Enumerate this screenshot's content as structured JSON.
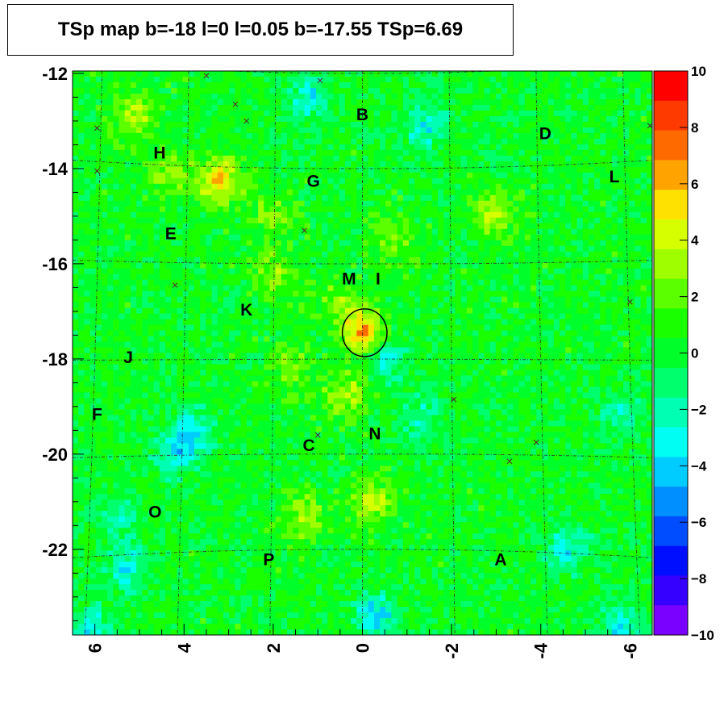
{
  "title": "TSp map b=-18 l=0 l=0.05 b=-17.55 TSp=6.69",
  "chart_data": {
    "type": "heatmap",
    "title": "TSp map b=-18 l=0 l=0.05 b=-17.55 TSp=6.69",
    "xlabel": "",
    "ylabel": "",
    "xlim": [
      6.5,
      -6.5
    ],
    "ylim": [
      -23.8,
      -11.95
    ],
    "zlim": [
      -10,
      10
    ],
    "x_ticks": [
      "6",
      "4",
      "2",
      "0",
      "-2",
      "-4",
      "-6"
    ],
    "y_ticks": [
      "-12",
      "-14",
      "-16",
      "-18",
      "-20",
      "-22"
    ],
    "z_ticks": [
      "10",
      "8",
      "6",
      "4",
      "2",
      "0",
      "−2",
      "−4",
      "−6",
      "−8",
      "−10"
    ],
    "colorbar": [
      "#ff0000",
      "#ff3a00",
      "#ff6a00",
      "#ffa300",
      "#ffe100",
      "#d6ff00",
      "#9fff00",
      "#5cff00",
      "#1aff00",
      "#00ff2a",
      "#00ff6d",
      "#00ffb2",
      "#00fff2",
      "#00ccff",
      "#008fff",
      "#004dff",
      "#000eff",
      "#3500ff",
      "#7a00ff"
    ],
    "background_value": 0.3,
    "hotspots": [
      {
        "x": -0.05,
        "y": -17.45,
        "value": 6.69
      },
      {
        "x": 3.2,
        "y": -14.25,
        "value": 5.5
      },
      {
        "x": 0.35,
        "y": -18.75,
        "value": 3.5
      },
      {
        "x": -0.2,
        "y": -21.0,
        "value": 3.5
      },
      {
        "x": -2.9,
        "y": -14.95,
        "value": 3.5
      },
      {
        "x": 1.95,
        "y": -16.2,
        "value": 3
      },
      {
        "x": 0.5,
        "y": -16.9,
        "value": 3
      },
      {
        "x": 5.1,
        "y": -12.85,
        "value": 3.5
      },
      {
        "x": 4.3,
        "y": -14.1,
        "value": 3
      },
      {
        "x": 1.3,
        "y": -21.3,
        "value": 3
      },
      {
        "x": 1.6,
        "y": -18.2,
        "value": 2.5
      },
      {
        "x": -0.7,
        "y": -15.5,
        "value": 2.5
      },
      {
        "x": 2.0,
        "y": -15.0,
        "value": 2.5
      }
    ],
    "coldspots": [
      {
        "x": 1.2,
        "y": -12.5,
        "value": -3
      },
      {
        "x": -1.4,
        "y": -13.1,
        "value": -3
      },
      {
        "x": -0.5,
        "y": -18.0,
        "value": -3
      },
      {
        "x": 3.8,
        "y": -19.5,
        "value": -3
      },
      {
        "x": 4.2,
        "y": -20.0,
        "value": -3
      },
      {
        "x": 5.3,
        "y": -22.4,
        "value": -3
      },
      {
        "x": -0.3,
        "y": -23.4,
        "value": -4
      },
      {
        "x": -4.6,
        "y": -22.0,
        "value": -3
      },
      {
        "x": -5.8,
        "y": -23.6,
        "value": -3
      },
      {
        "x": 6.1,
        "y": -23.7,
        "value": -3
      },
      {
        "x": -1.3,
        "y": -19.2,
        "value": -2
      },
      {
        "x": -5.8,
        "y": -19.1,
        "value": -2
      },
      {
        "x": 5.5,
        "y": -21.3,
        "value": -2
      }
    ],
    "circle": {
      "x": -0.05,
      "y": -17.45,
      "radius_deg": 0.5
    },
    "sources": [
      {
        "name": "B",
        "x": 0.0,
        "y": -12.85
      },
      {
        "name": "D",
        "x": -4.1,
        "y": -13.25
      },
      {
        "name": "H",
        "x": 4.55,
        "y": -13.65
      },
      {
        "name": "G",
        "x": 1.1,
        "y": -14.25
      },
      {
        "name": "L",
        "x": -5.65,
        "y": -14.15
      },
      {
        "name": "E",
        "x": 4.3,
        "y": -15.35
      },
      {
        "name": "M",
        "x": 0.3,
        "y": -16.3
      },
      {
        "name": "I",
        "x": -0.35,
        "y": -16.3
      },
      {
        "name": "K",
        "x": 2.6,
        "y": -16.95
      },
      {
        "name": "J",
        "x": 5.25,
        "y": -17.95
      },
      {
        "name": "F",
        "x": 5.95,
        "y": -19.15
      },
      {
        "name": "N",
        "x": -0.28,
        "y": -19.55
      },
      {
        "name": "C",
        "x": 1.2,
        "y": -19.8
      },
      {
        "name": "O",
        "x": 4.65,
        "y": -21.2
      },
      {
        "name": "P",
        "x": 2.1,
        "y": -22.2
      },
      {
        "name": "A",
        "x": -3.1,
        "y": -22.2
      }
    ],
    "markers": [
      {
        "x": 3.5,
        "y": -12.05
      },
      {
        "x": 0.95,
        "y": -12.15
      },
      {
        "x": 2.85,
        "y": -12.65
      },
      {
        "x": 2.6,
        "y": -13.0
      },
      {
        "x": 5.95,
        "y": -13.15
      },
      {
        "x": -6.45,
        "y": -13.1
      },
      {
        "x": 5.95,
        "y": -14.05
      },
      {
        "x": 1.3,
        "y": -15.3
      },
      {
        "x": 4.2,
        "y": -16.45
      },
      {
        "x": -2.05,
        "y": -18.85
      },
      {
        "x": 1.0,
        "y": -19.6
      },
      {
        "x": -3.3,
        "y": -20.15
      },
      {
        "x": -3.9,
        "y": -19.75
      },
      {
        "x": -6.0,
        "y": -16.8
      }
    ]
  }
}
